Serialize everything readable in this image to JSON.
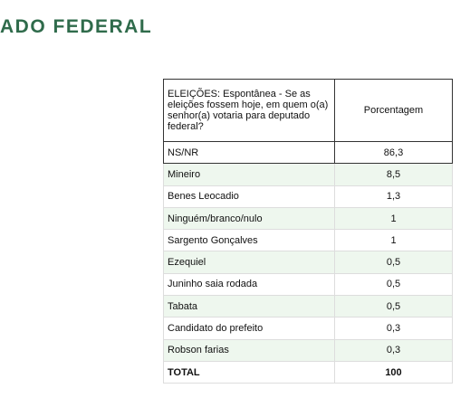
{
  "header": {
    "title": "ADO FEDERAL"
  },
  "table": {
    "columns": [
      "ELEIÇÕES: Espontânea - Se as eleições fossem hoje, em quem o(a) senhor(a) votaria para deputado federal?",
      "Porcentagem"
    ],
    "rows": [
      [
        "NS/NR",
        "86,3"
      ],
      [
        "Mineiro",
        "8,5"
      ],
      [
        "Benes Leocadio",
        "1,3"
      ],
      [
        "Ninguém/branco/nulo",
        "1"
      ],
      [
        "Sargento Gonçalves",
        "1"
      ],
      [
        "Ezequiel",
        "0,5"
      ],
      [
        "Juninho saia rodada",
        "0,5"
      ],
      [
        "Tabata",
        "0,5"
      ],
      [
        "Candidato do prefeito",
        "0,3"
      ],
      [
        "Robson farias",
        "0,3"
      ],
      [
        "TOTAL",
        "100"
      ]
    ]
  }
}
